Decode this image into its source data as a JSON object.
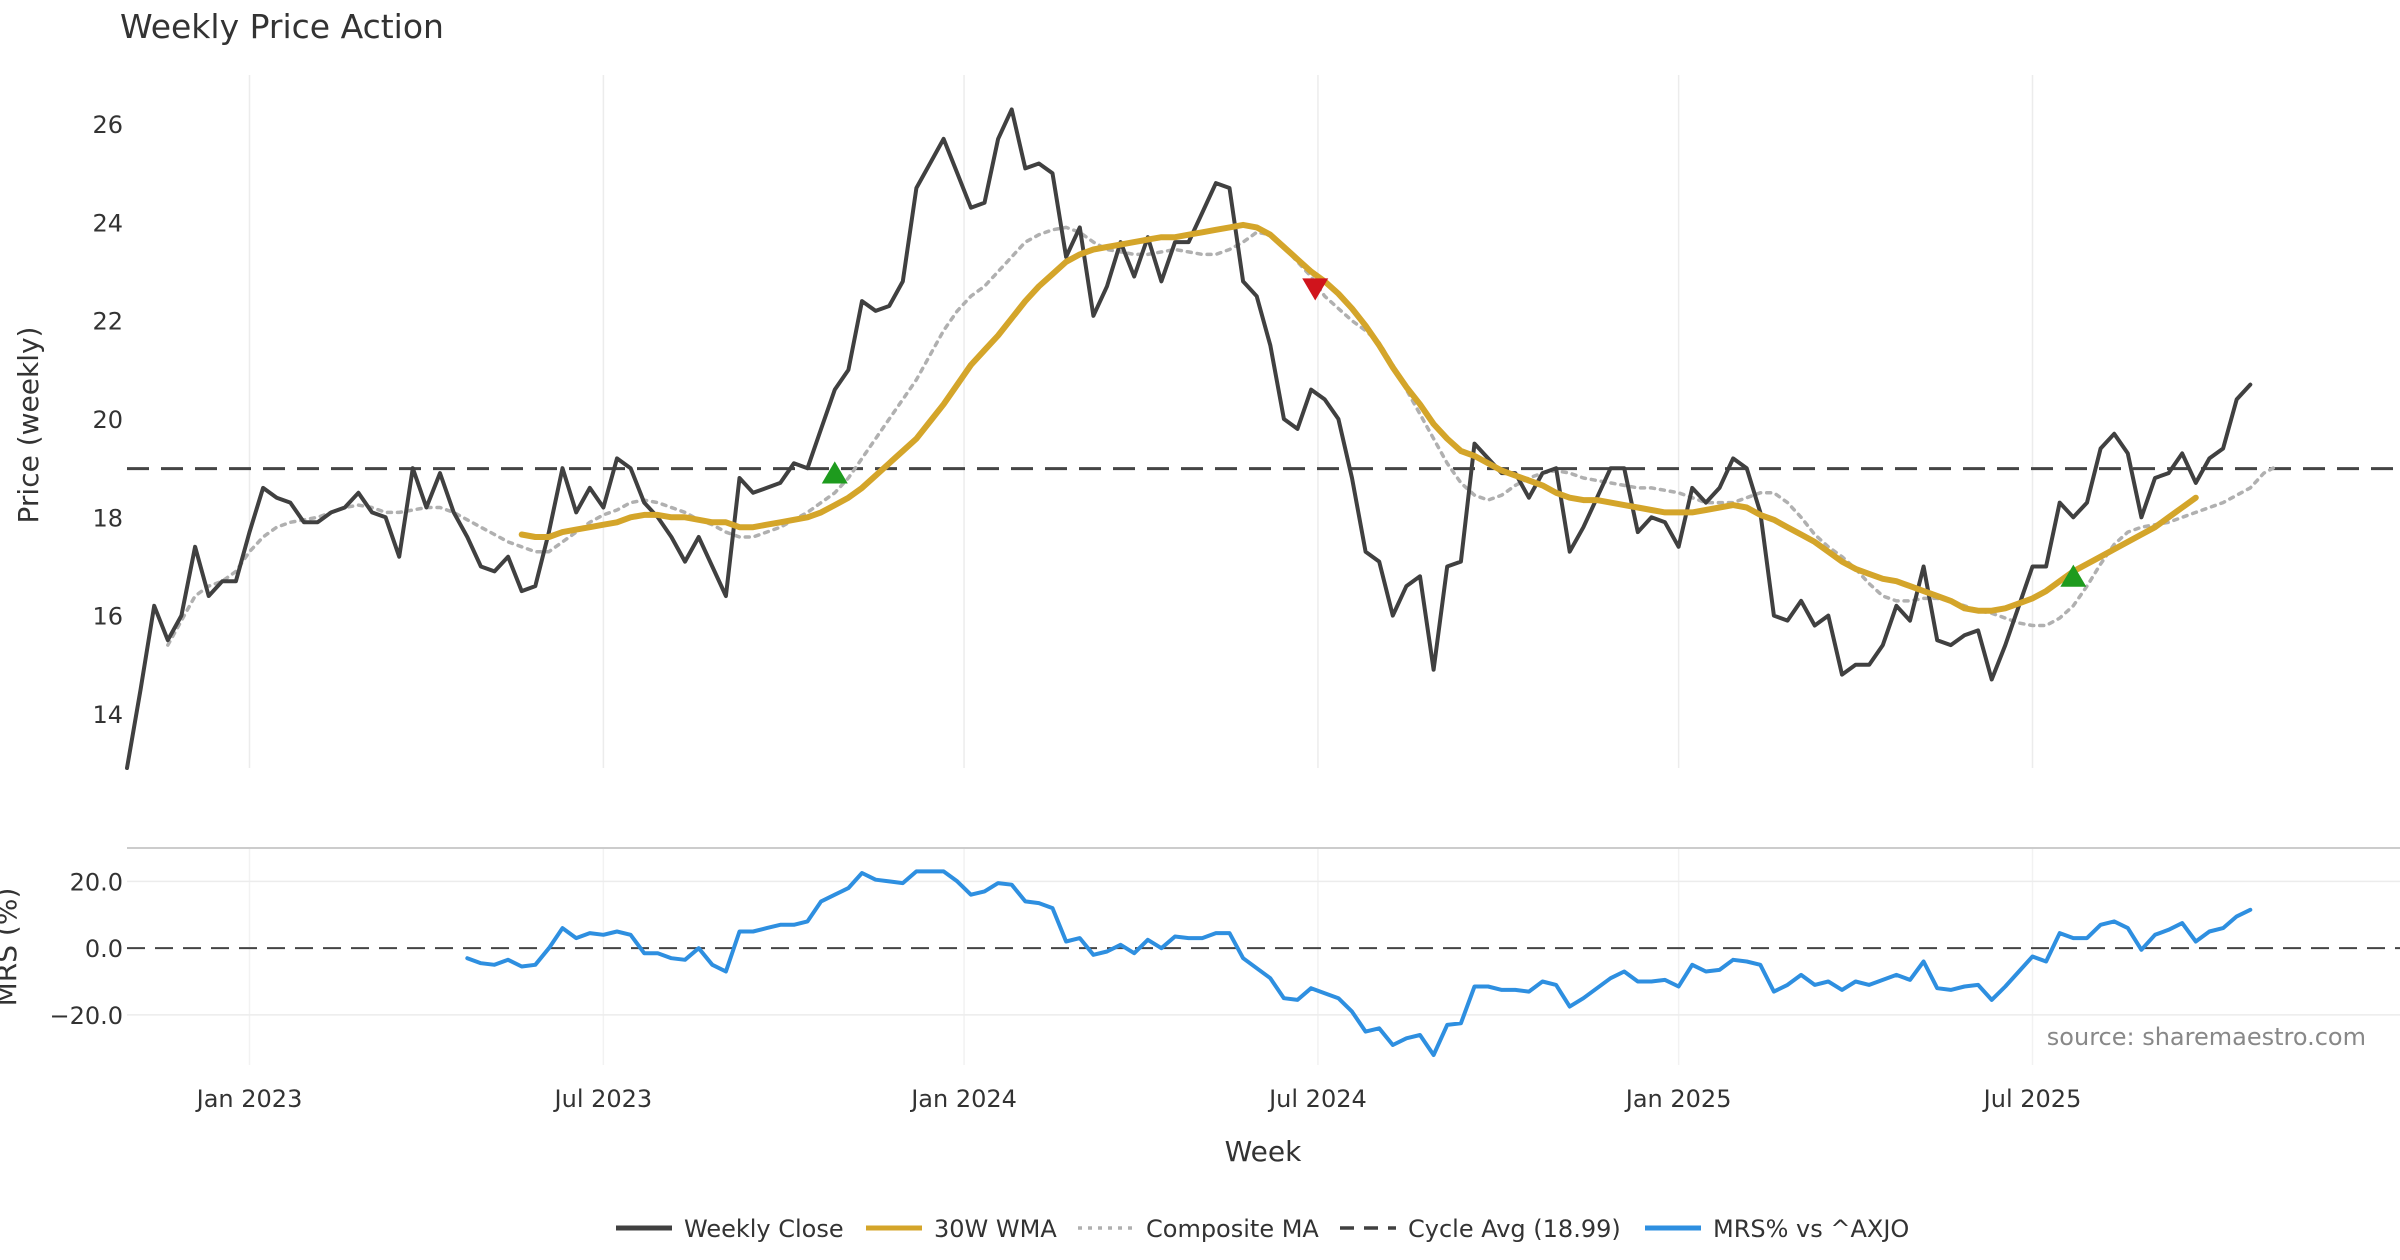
{
  "chart_data": [
    {
      "type": "line",
      "title": "Weekly Price Action",
      "ylabel": "Price (weekly)",
      "ylim": [
        12.9,
        27.0
      ],
      "yticks": [
        14,
        16,
        18,
        20,
        22,
        24,
        26
      ],
      "x_range_weeks": [
        -2,
        165
      ],
      "date_ticks": [
        {
          "label": "Jan 2023",
          "week": 7
        },
        {
          "label": "Jul 2023",
          "week": 33
        },
        {
          "label": "Jan 2024",
          "week": 59.5
        },
        {
          "label": "Jul 2024",
          "week": 85.5
        },
        {
          "label": "Jan 2025",
          "week": 112
        },
        {
          "label": "Jul 2025",
          "week": 138
        }
      ],
      "cycle_avg": 18.99,
      "series": [
        {
          "name": "Weekly Close",
          "color": "#404040",
          "start_week": -2,
          "values": [
            12.9,
            14.5,
            16.2,
            15.5,
            16.0,
            17.4,
            16.4,
            16.7,
            16.7,
            17.7,
            18.6,
            18.4,
            18.3,
            17.9,
            17.9,
            18.1,
            18.2,
            18.5,
            18.1,
            18.0,
            17.2,
            19.0,
            18.2,
            18.9,
            18.1,
            17.6,
            17.0,
            16.9,
            17.2,
            16.5,
            16.6,
            17.7,
            19.0,
            18.1,
            18.6,
            18.2,
            19.2,
            19.0,
            18.3,
            18.0,
            17.6,
            17.1,
            17.6,
            17.0,
            16.4,
            18.8,
            18.5,
            18.6,
            18.7,
            19.1,
            19.0,
            19.8,
            20.6,
            21.0,
            22.4,
            22.2,
            22.3,
            22.8,
            24.7,
            25.2,
            25.7,
            25.0,
            24.3,
            24.4,
            25.7,
            26.3,
            25.1,
            25.2,
            25.0,
            23.3,
            23.9,
            22.1,
            22.7,
            23.6,
            22.9,
            23.7,
            22.8,
            23.6,
            23.6,
            24.2,
            24.8,
            24.7,
            22.8,
            22.5,
            21.5,
            20.0,
            19.8,
            20.6,
            20.4,
            20.0,
            18.8,
            17.3,
            17.1,
            16.0,
            16.6,
            16.8,
            14.9,
            17.0,
            17.1,
            19.5,
            19.2,
            18.9,
            18.9,
            18.4,
            18.9,
            19.0,
            17.3,
            17.8,
            18.4,
            19.0,
            19.0,
            17.7,
            18.0,
            17.9,
            17.4,
            18.6,
            18.3,
            18.6,
            19.2,
            19.0,
            18.1,
            16.0,
            15.9,
            16.3,
            15.8,
            16.0,
            14.8,
            15.0,
            15.0,
            15.4,
            16.2,
            15.9,
            17.0,
            15.5,
            15.4,
            15.6,
            15.7,
            14.7,
            15.4,
            16.2,
            17.0,
            17.0,
            18.3,
            18.0,
            18.3,
            19.4,
            19.7,
            19.3,
            18.0,
            18.8,
            18.9,
            19.3,
            18.7,
            19.2,
            19.4,
            20.4,
            20.7
          ]
        },
        {
          "name": "30W WMA",
          "color": "#d4a52a",
          "start_week": 27,
          "values": [
            17.65,
            17.6,
            17.6,
            17.7,
            17.75,
            17.8,
            17.85,
            17.9,
            18.0,
            18.05,
            18.05,
            18.0,
            18.0,
            17.95,
            17.9,
            17.9,
            17.8,
            17.8,
            17.85,
            17.9,
            17.95,
            18.0,
            18.1,
            18.25,
            18.4,
            18.6,
            18.85,
            19.1,
            19.35,
            19.6,
            19.95,
            20.3,
            20.7,
            21.1,
            21.4,
            21.7,
            22.05,
            22.4,
            22.7,
            22.95,
            23.2,
            23.35,
            23.45,
            23.5,
            23.55,
            23.6,
            23.65,
            23.7,
            23.7,
            23.75,
            23.8,
            23.85,
            23.9,
            23.95,
            23.9,
            23.75,
            23.5,
            23.25,
            23.0,
            22.8,
            22.55,
            22.25,
            21.9,
            21.5,
            21.05,
            20.65,
            20.3,
            19.9,
            19.6,
            19.35,
            19.25,
            19.1,
            18.95,
            18.85,
            18.75,
            18.65,
            18.5,
            18.4,
            18.35,
            18.35,
            18.3,
            18.25,
            18.2,
            18.15,
            18.1,
            18.1,
            18.1,
            18.15,
            18.2,
            18.25,
            18.2,
            18.05,
            17.95,
            17.8,
            17.65,
            17.5,
            17.3,
            17.1,
            16.95,
            16.85,
            16.75,
            16.7,
            16.6,
            16.5,
            16.4,
            16.3,
            16.15,
            16.1,
            16.1,
            16.15,
            16.25,
            16.35,
            16.5,
            16.7,
            16.9,
            17.05,
            17.2,
            17.35,
            17.5,
            17.65,
            17.8,
            18.0,
            18.2,
            18.4
          ]
        },
        {
          "name": "Composite MA",
          "color": "#b0b0b0",
          "start_week": 1,
          "values": [
            15.4,
            15.9,
            16.4,
            16.6,
            16.7,
            16.9,
            17.3,
            17.6,
            17.8,
            17.9,
            17.95,
            18.0,
            18.1,
            18.2,
            18.25,
            18.2,
            18.1,
            18.1,
            18.15,
            18.2,
            18.2,
            18.1,
            17.95,
            17.8,
            17.65,
            17.5,
            17.4,
            17.3,
            17.3,
            17.5,
            17.7,
            17.9,
            18.05,
            18.15,
            18.3,
            18.35,
            18.3,
            18.2,
            18.1,
            17.95,
            17.85,
            17.7,
            17.6,
            17.6,
            17.7,
            17.8,
            17.95,
            18.1,
            18.3,
            18.5,
            18.8,
            19.2,
            19.6,
            20.0,
            20.4,
            20.8,
            21.3,
            21.8,
            22.2,
            22.5,
            22.7,
            23.0,
            23.3,
            23.6,
            23.75,
            23.85,
            23.9,
            23.8,
            23.6,
            23.45,
            23.4,
            23.35,
            23.35,
            23.4,
            23.45,
            23.4,
            23.35,
            23.35,
            23.45,
            23.6,
            23.8,
            23.75,
            23.5,
            23.2,
            22.9,
            22.5,
            22.25,
            22.0,
            21.8,
            21.55,
            21.1,
            20.6,
            20.1,
            19.6,
            19.1,
            18.7,
            18.45,
            18.35,
            18.45,
            18.65,
            18.8,
            18.9,
            18.95,
            18.9,
            18.8,
            18.75,
            18.7,
            18.65,
            18.6,
            18.6,
            18.55,
            18.5,
            18.4,
            18.3,
            18.3,
            18.3,
            18.4,
            18.5,
            18.5,
            18.3,
            18.0,
            17.65,
            17.4,
            17.2,
            16.95,
            16.65,
            16.4,
            16.3,
            16.3,
            16.35,
            16.35,
            16.3,
            16.2,
            16.1,
            16.05,
            15.95,
            15.85,
            15.8,
            15.8,
            15.95,
            16.2,
            16.6,
            17.05,
            17.45,
            17.7,
            17.8,
            17.85,
            17.9,
            18.0,
            18.1,
            18.2,
            18.3,
            18.45,
            18.6,
            18.9,
            19.05
          ]
        }
      ],
      "markers": [
        {
          "type": "buy",
          "week": 50,
          "value": 18.9,
          "color": "#1e9b1e"
        },
        {
          "type": "sell",
          "week": 85.3,
          "value": 22.65,
          "color": "#d0141c"
        },
        {
          "type": "buy",
          "week": 141,
          "value": 16.8,
          "color": "#1e9b1e"
        }
      ]
    },
    {
      "type": "line",
      "ylabel": "MRS (%)",
      "xlabel": "Week",
      "ylim": [
        -35,
        30
      ],
      "yticks": [
        {
          "value": 20,
          "label": "20.0"
        },
        {
          "value": 0,
          "label": "0.0"
        },
        {
          "value": -20,
          "label": "−20.0"
        }
      ],
      "zero_line": 0,
      "annotation": "source: sharemaestro.com",
      "series": [
        {
          "name": "MRS% vs ^AXJO",
          "color": "#2e8fe0",
          "start_week": 23,
          "values": [
            -3.0,
            -4.5,
            -5.0,
            -3.5,
            -5.5,
            -5.0,
            0.0,
            6.0,
            3.0,
            4.5,
            4.0,
            5.0,
            4.0,
            -1.5,
            -1.5,
            -3.0,
            -3.5,
            0.0,
            -5.0,
            -7.0,
            5.0,
            5.0,
            6.0,
            7.0,
            7.0,
            8.0,
            14.0,
            16.0,
            18.0,
            22.5,
            20.5,
            20.0,
            19.5,
            23.0,
            23.0,
            23.0,
            20.0,
            16.0,
            17.0,
            19.5,
            19.0,
            14.0,
            13.5,
            12.0,
            2.0,
            3.0,
            -2.0,
            -1.0,
            1.0,
            -1.5,
            2.5,
            0.0,
            3.5,
            3.0,
            3.0,
            4.5,
            4.5,
            -3.0,
            -6.0,
            -9.0,
            -15.0,
            -15.5,
            -12.0,
            -13.5,
            -15.0,
            -19.0,
            -25.0,
            -24.0,
            -29.0,
            -27.0,
            -26.0,
            -32.0,
            -23.0,
            -22.5,
            -11.5,
            -11.5,
            -12.5,
            -12.5,
            -13.0,
            -10.0,
            -11.0,
            -17.5,
            -15.0,
            -12.0,
            -9.0,
            -7.0,
            -10.0,
            -10.0,
            -9.5,
            -11.5,
            -5.0,
            -7.0,
            -6.5,
            -3.5,
            -4.0,
            -5.0,
            -13.0,
            -11.0,
            -8.0,
            -11.0,
            -10.0,
            -12.5,
            -10.0,
            -11.0,
            -9.5,
            -8.0,
            -9.5,
            -4.0,
            -12.0,
            -12.5,
            -11.5,
            -11.0,
            -15.5,
            -11.5,
            -7.0,
            -2.5,
            -4.0,
            4.5,
            3.0,
            3.0,
            7.0,
            8.0,
            6.0,
            -0.5,
            4.0,
            5.5,
            7.5,
            2.0,
            5.0,
            6.0,
            9.5,
            11.5
          ]
        }
      ]
    }
  ],
  "legend": [
    {
      "label": "Weekly Close",
      "style": "solid",
      "color": "#404040"
    },
    {
      "label": "30W WMA",
      "style": "solid",
      "color": "#d4a52a"
    },
    {
      "label": "Composite MA",
      "style": "dotted",
      "color": "#b0b0b0"
    },
    {
      "label": "Cycle Avg (18.99)",
      "style": "dashed",
      "color": "#404040"
    },
    {
      "label": "MRS% vs ^AXJO",
      "style": "solid",
      "color": "#2e8fe0"
    }
  ]
}
